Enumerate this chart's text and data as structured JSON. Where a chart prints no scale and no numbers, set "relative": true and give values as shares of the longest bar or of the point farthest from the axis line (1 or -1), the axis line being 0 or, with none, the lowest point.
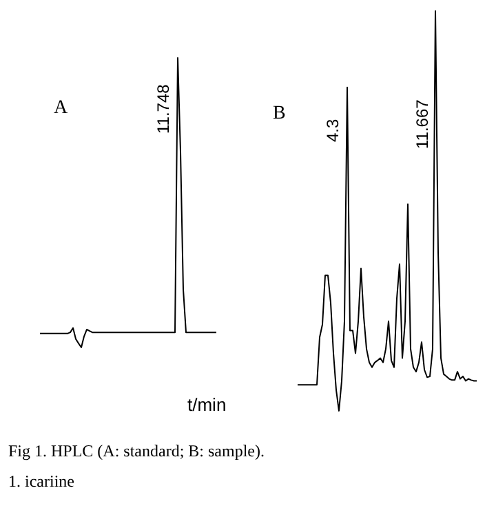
{
  "chart_data": [
    {
      "type": "line",
      "title": "A",
      "xlabel": "t/min",
      "relative": true,
      "color": "#000000",
      "categories": [
        null,
        null,
        null,
        null,
        null,
        null,
        null,
        null,
        null,
        null,
        null,
        null,
        null,
        null,
        null,
        null,
        null,
        null,
        null,
        null,
        null,
        null,
        null,
        null,
        null,
        null,
        null,
        null,
        null,
        null,
        null,
        null,
        null,
        null,
        null,
        null,
        null,
        null,
        null,
        null,
        null,
        null,
        null,
        null,
        null,
        null,
        null,
        null,
        null,
        null,
        null,
        null,
        null,
        null,
        null,
        null,
        null,
        null,
        null,
        null,
        null,
        null,
        null,
        null,
        null
      ],
      "values": [
        0.048,
        0.048,
        0.048,
        0.048,
        0.048,
        0.048,
        0.048,
        0.048,
        0.048,
        0.048,
        0.048,
        0.052,
        0.067,
        0.029,
        0.014,
        0,
        0.038,
        0.062,
        0.057,
        0.052,
        0.052,
        0.052,
        0.052,
        0.052,
        0.052,
        0.052,
        0.052,
        0.052,
        0.052,
        0.052,
        0.052,
        0.052,
        0.052,
        0.052,
        0.052,
        0.052,
        0.052,
        0.052,
        0.052,
        0.052,
        0.052,
        0.052,
        0.052,
        0.052,
        0.052,
        0.052,
        0.052,
        0.052,
        0.052,
        0.052,
        1,
        0.676,
        0.2,
        0.052,
        0.052,
        0.052,
        0.052,
        0.052,
        0.052,
        0.052,
        0.052,
        0.052,
        0.052,
        0.052,
        0.052
      ],
      "annotations": [
        "11.748"
      ]
    },
    {
      "type": "line",
      "title": "B",
      "relative": true,
      "color": "#000000",
      "categories": [
        null,
        null,
        null,
        null,
        null,
        null,
        null,
        null,
        null,
        null,
        null,
        null,
        null,
        null,
        null,
        null,
        null,
        null,
        null,
        null,
        null,
        null,
        null,
        null,
        null,
        null,
        null,
        null,
        null,
        null,
        null,
        null,
        null,
        null,
        null,
        null,
        null,
        null,
        null,
        null,
        null,
        null,
        null,
        null,
        null,
        null,
        null,
        null,
        null,
        null,
        null,
        null,
        null,
        null,
        null,
        null,
        null,
        null,
        null,
        null,
        null,
        null,
        null,
        null,
        null,
        null
      ],
      "values": [
        0.065,
        0.065,
        0.065,
        0.065,
        0.065,
        0.065,
        0.065,
        0.065,
        0.184,
        0.216,
        0.339,
        0.339,
        0.27,
        0.144,
        0.052,
        0,
        0.075,
        0.224,
        0.809,
        0.201,
        0.201,
        0.144,
        0.224,
        0.356,
        0.235,
        0.155,
        0.121,
        0.109,
        0.121,
        0.126,
        0.132,
        0.121,
        0.155,
        0.224,
        0.126,
        0.109,
        0.281,
        0.367,
        0.132,
        0.224,
        0.517,
        0.155,
        0.109,
        0.098,
        0.121,
        0.172,
        0.103,
        0.084,
        0.086,
        0.155,
        1,
        0.396,
        0.132,
        0.092,
        0.086,
        0.08,
        0.077,
        0.077,
        0.098,
        0.08,
        0.086,
        0.075,
        0.08,
        0.077,
        0.075,
        0.075
      ],
      "annotations": [
        "4.3",
        "11.667",
        "Fig 1. HPLC (A: standard; B: sample).",
        "1. icariine"
      ]
    }
  ]
}
